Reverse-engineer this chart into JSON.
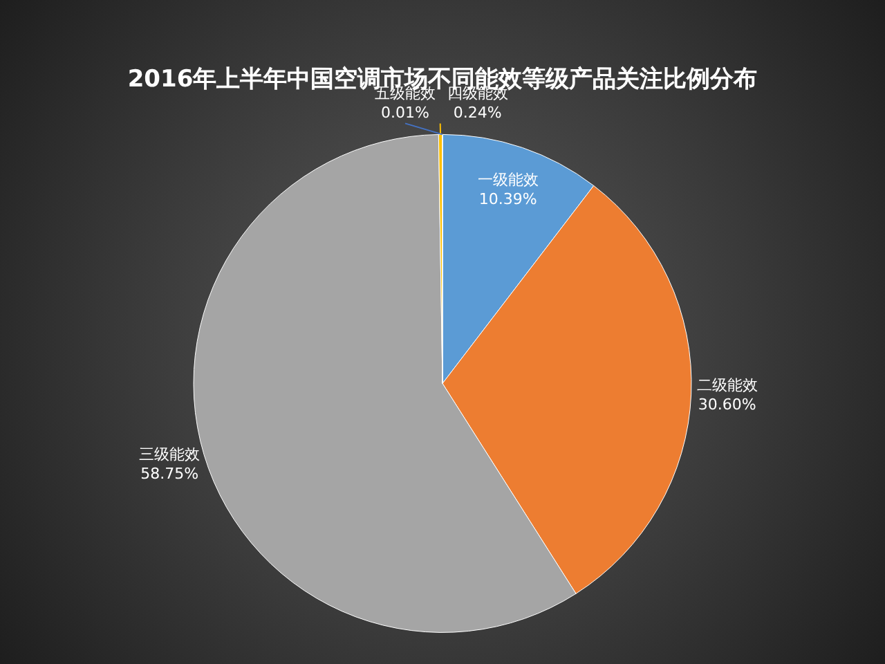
{
  "chart_data": {
    "type": "pie",
    "title": "2016年上半年中国空调市场不同能效等级产品关注比例分布",
    "categories": [
      "一级能效",
      "二级能效",
      "三级能效",
      "四级能效",
      "五级能效"
    ],
    "values": [
      10.39,
      30.6,
      58.75,
      0.24,
      0.01
    ],
    "value_labels": [
      "10.39%",
      "30.60%",
      "58.75%",
      "0.24%",
      "0.01%"
    ],
    "colors": [
      "#5b9bd5",
      "#ed7d31",
      "#a5a5a5",
      "#ffc000",
      "#4472c4"
    ],
    "legend": false
  }
}
